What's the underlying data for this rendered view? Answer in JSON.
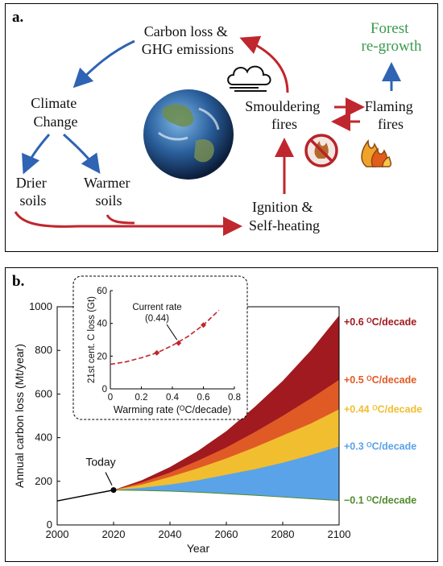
{
  "panel_a": {
    "label": "a.",
    "nodes": {
      "carbon_loss": [
        "Carbon loss &",
        "GHG emissions"
      ],
      "forest_regrowth": [
        "Forest",
        "re-growth"
      ],
      "climate_change": [
        "Climate",
        "Change"
      ],
      "smouldering": [
        "Smouldering",
        "fires"
      ],
      "flaming": [
        "Flaming",
        "fires"
      ],
      "drier_soils": [
        "Drier",
        "soils"
      ],
      "warmer_soils": [
        "Warmer",
        "soils"
      ],
      "ignition": [
        "Ignition &",
        "Self-heating"
      ]
    },
    "icons": [
      "cloud-icon",
      "earth-icon",
      "no-fire-icon",
      "fire-icon"
    ],
    "colors": {
      "red_arrow": "#c0262d",
      "blue_arrow": "#2f63b3",
      "green_text": "#3c9a4e"
    }
  },
  "panel_b": {
    "label": "b.",
    "today_label": "Today",
    "chart_data": [
      {
        "type": "area",
        "xlabel": "Year",
        "ylabel": "Annual carbon loss (Mt/year)",
        "xlim": [
          2000,
          2100
        ],
        "ylim": [
          0,
          1000
        ],
        "xticks": [
          2000,
          2020,
          2040,
          2060,
          2080,
          2100
        ],
        "yticks": [
          0,
          200,
          400,
          600,
          800,
          1000
        ],
        "history": {
          "x": [
            2000,
            2020
          ],
          "y": [
            110,
            160
          ]
        },
        "today": {
          "x": 2020,
          "y": 160
        },
        "x": [
          2020,
          2030,
          2040,
          2050,
          2060,
          2070,
          2080,
          2090,
          2100
        ],
        "series": [
          {
            "name": "+0.6 °C/decade",
            "label": "+0.6 ᴼC/decade",
            "color": "#a11a1f",
            "values": [
              160,
              205,
              265,
              340,
              430,
              540,
              660,
              800,
              960
            ]
          },
          {
            "name": "+0.5 °C/decade",
            "label": "+0.5 ᴼC/decade",
            "color": "#e05a26",
            "values": [
              160,
              195,
              240,
              295,
              355,
              425,
              500,
              580,
              665
            ]
          },
          {
            "name": "+0.44 °C/decade",
            "label": "+0.44 ᴼC/decade",
            "color": "#f1be30",
            "values": [
              160,
              185,
              220,
              260,
              305,
              355,
              410,
              465,
              530
            ]
          },
          {
            "name": "+0.3 °C/decade",
            "label": "+0.3 ᴼC/decade",
            "color": "#5aa3e8",
            "values": [
              160,
              170,
              185,
              205,
              230,
              255,
              285,
              320,
              360
            ]
          },
          {
            "name": "−0.1 °C/decade",
            "label": "−0.1 ᴼC/decade",
            "color": "#4f8a2b",
            "values": [
              160,
              158,
              155,
              150,
              143,
              136,
              128,
              120,
              112
            ]
          }
        ]
      },
      {
        "type": "line",
        "xlabel": "Warming rate (ᴼC/decade)",
        "ylabel": "21st cent. C loss (Gt)",
        "xlim": [
          0,
          0.8
        ],
        "ylim": [
          0,
          60
        ],
        "xticks": [
          0,
          0.2,
          0.4,
          0.6,
          0.8
        ],
        "yticks": [
          0,
          20,
          40,
          60
        ],
        "curve": {
          "x": [
            0,
            0.1,
            0.2,
            0.3,
            0.4,
            0.5,
            0.6,
            0.7
          ],
          "y": [
            15,
            16.5,
            19,
            22,
            26.5,
            32,
            39,
            48
          ]
        },
        "points": {
          "x": [
            0.3,
            0.44,
            0.6
          ],
          "y": [
            22,
            28,
            39
          ]
        },
        "annotation": [
          "Current rate",
          "(0.44)"
        ],
        "color": "#c0262d"
      }
    ]
  }
}
